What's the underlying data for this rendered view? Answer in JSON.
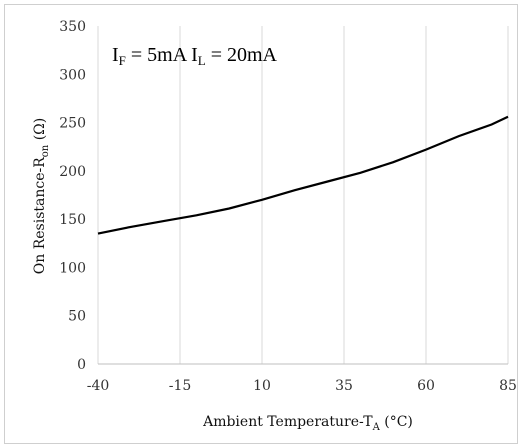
{
  "chart_data": {
    "type": "line",
    "title": "",
    "annotation": {
      "parts": [
        {
          "text": "I",
          "sub": "F"
        },
        {
          "text": " = 5mA I",
          "sub": "L"
        },
        {
          "text": " = 20mA",
          "sub": ""
        }
      ]
    },
    "xlabel": {
      "main": "Ambient Temperature-T",
      "sub": "A",
      "suffix": " (°C)"
    },
    "ylabel": {
      "main": "On Resistance-R",
      "sub": "on",
      "suffix": " (Ω)"
    },
    "xlim": [
      -40,
      85
    ],
    "ylim": [
      0,
      350
    ],
    "x_ticks": [
      -40,
      -15,
      10,
      35,
      60,
      85
    ],
    "y_ticks": [
      0,
      50,
      100,
      150,
      200,
      250,
      300,
      350
    ],
    "grid": {
      "vertical": true,
      "horizontal": false
    },
    "series": [
      {
        "color": "#000000",
        "x": [
          -40,
          -30,
          -20,
          -15,
          -10,
          0,
          10,
          20,
          30,
          40,
          50,
          60,
          70,
          80,
          85
        ],
        "y": [
          135,
          142,
          148,
          151,
          154,
          161,
          170,
          180,
          189,
          198,
          209,
          222,
          236,
          248,
          256
        ]
      }
    ]
  }
}
